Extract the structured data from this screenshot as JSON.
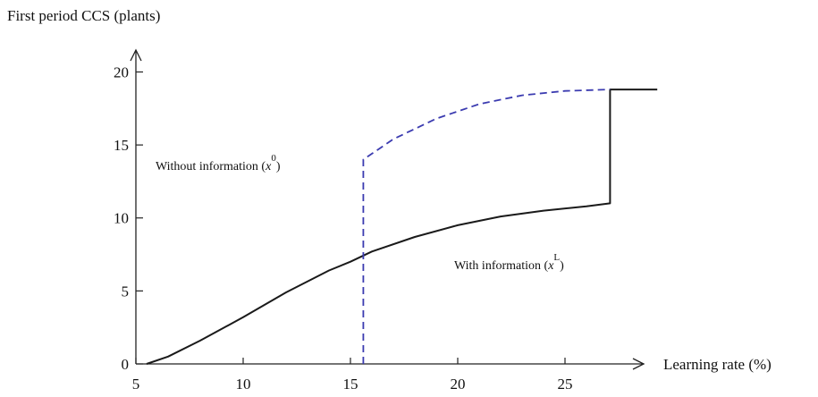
{
  "chart_data": {
    "type": "line",
    "ylabel": "First period CCS (plants)",
    "xlabel": "Learning rate (%)",
    "xlim": [
      5,
      29.5
    ],
    "ylim": [
      0,
      21.5
    ],
    "x_ticks": [
      5,
      10,
      15,
      20,
      25
    ],
    "y_ticks": [
      0,
      5,
      10,
      15,
      20
    ],
    "grid": false,
    "axis_colors": {
      "axes": "#222222",
      "with_info": "#1a1a1a",
      "without_info": "#3b3bb0"
    },
    "series": [
      {
        "name": "With information",
        "symbol": "x",
        "superscript": "L",
        "style": "solid",
        "points": [
          [
            5.5,
            0
          ],
          [
            6.5,
            0.5
          ],
          [
            8,
            1.6
          ],
          [
            10,
            3.2
          ],
          [
            12,
            4.9
          ],
          [
            14,
            6.4
          ],
          [
            15,
            7.0
          ],
          [
            16,
            7.7
          ],
          [
            18,
            8.7
          ],
          [
            20,
            9.5
          ],
          [
            22,
            10.1
          ],
          [
            24,
            10.5
          ],
          [
            26,
            10.8
          ],
          [
            27.1,
            11.0
          ],
          [
            27.1,
            18.8
          ],
          [
            29.3,
            18.8
          ]
        ]
      },
      {
        "name": "Without information",
        "symbol": "x",
        "superscript": "0",
        "style": "dashed",
        "points": [
          [
            15.6,
            0
          ],
          [
            15.6,
            14.0
          ],
          [
            17,
            15.4
          ],
          [
            19,
            16.8
          ],
          [
            21,
            17.8
          ],
          [
            23,
            18.4
          ],
          [
            25,
            18.7
          ],
          [
            27.1,
            18.8
          ]
        ]
      }
    ]
  }
}
